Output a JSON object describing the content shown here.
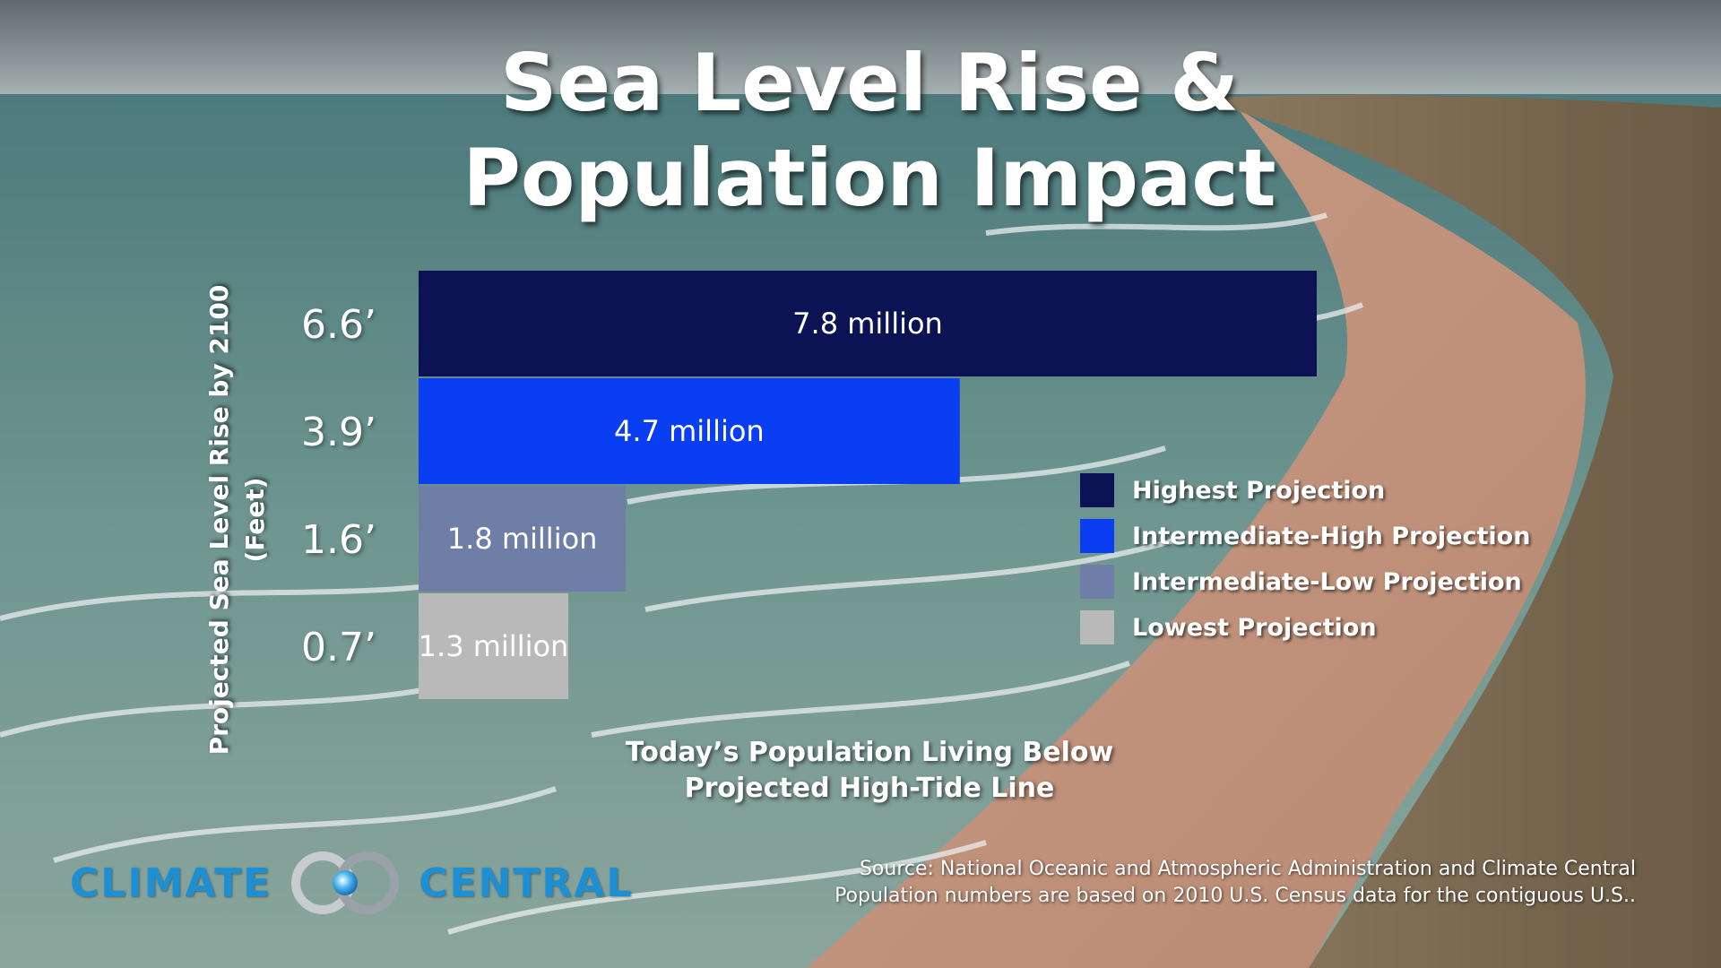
{
  "title": {
    "line1": "Sea Level Rise &",
    "line2": "Population Impact"
  },
  "colors": {
    "highest": "#0b1355",
    "intermediate_high": "#0a3ef2",
    "intermediate_low": "#6f7ea6",
    "lowest": "#b9b9b9"
  },
  "chart_data": {
    "type": "bar",
    "orientation": "horizontal",
    "categories": [
      "6.6’",
      "3.9’",
      "1.6’",
      "0.7’"
    ],
    "values": [
      7.8,
      4.7,
      1.8,
      1.3
    ],
    "value_labels": [
      "7.8 million",
      "4.7 million",
      "1.8 million",
      "1.3 million"
    ],
    "value_unit": "million",
    "series_names": [
      "Highest Projection",
      "Intermediate-High Projection",
      "Intermediate-Low Projection",
      "Lowest Projection"
    ],
    "ylabel_line1": "Projected Sea Level Rise by 2100",
    "ylabel_line2": "(Feet)",
    "xlabel_line1": "Today’s Population Living Below",
    "xlabel_line2": "Projected High-Tide Line",
    "legend_position": "right"
  },
  "logo": {
    "left_word": "CLIMATE",
    "right_word": "CENTRAL"
  },
  "source": {
    "line1": "Source: National Oceanic and Atmospheric Administration and Climate Central",
    "line2": "Population numbers are based on 2010 U.S. Census data for the contiguous U.S.."
  }
}
